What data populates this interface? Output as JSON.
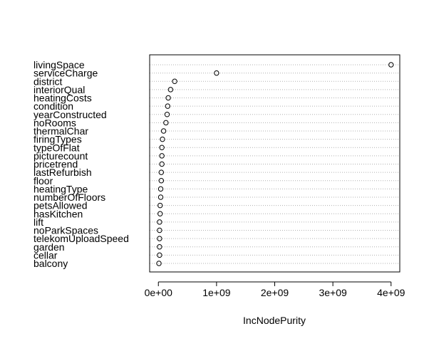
{
  "chart_data": {
    "type": "dotchart",
    "xlabel": "IncNodePurity",
    "xlim": [
      -150000000,
      4150000000
    ],
    "x_ticks": [
      0,
      1000000000,
      2000000000,
      3000000000,
      4000000000
    ],
    "x_tick_labels": [
      "0e+00",
      "1e+09",
      "2e+09",
      "3e+09",
      "4e+09"
    ],
    "grid": "dotted horizontal lines per variable",
    "categories": [
      "livingSpace",
      "serviceCharge",
      "district",
      "interiorQual",
      "heatingCosts",
      "condition",
      "yearConstructed",
      "noRooms",
      "thermalChar",
      "firingTypes",
      "typeOfFlat",
      "picturecount",
      "pricetrend",
      "lastRefurbish",
      "floor",
      "heatingType",
      "numberOfFloors",
      "petsAllowed",
      "hasKitchen",
      "lift",
      "noParkSpaces",
      "telekomUploadSpeed",
      "garden",
      "cellar",
      "balcony"
    ],
    "values": [
      4000000000,
      1000000000,
      280000000,
      210000000,
      170000000,
      160000000,
      150000000,
      130000000,
      90000000,
      70000000,
      60000000,
      60000000,
      60000000,
      50000000,
      50000000,
      40000000,
      40000000,
      30000000,
      30000000,
      20000000,
      20000000,
      20000000,
      20000000,
      20000000,
      10000000
    ]
  }
}
